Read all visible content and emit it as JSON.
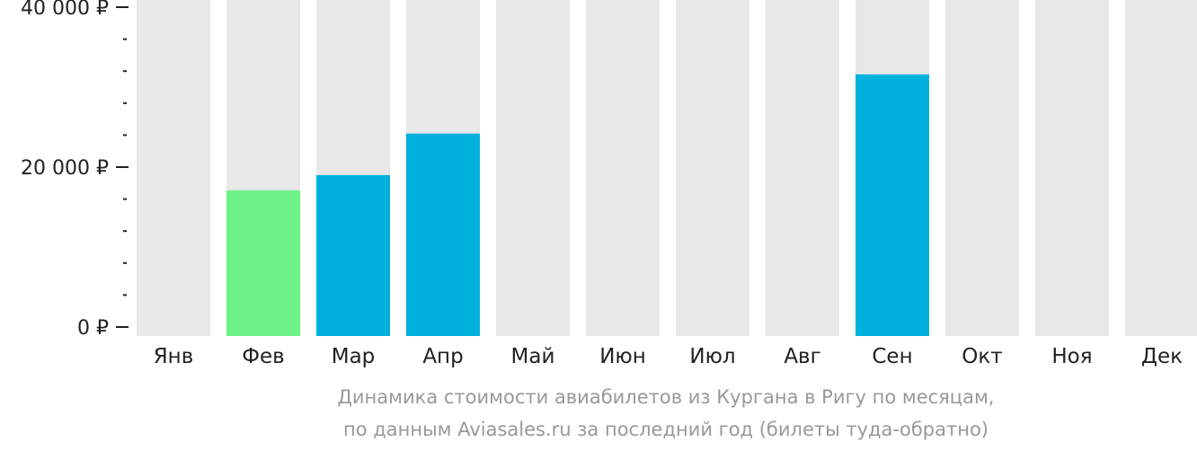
{
  "chart_data": {
    "type": "bar",
    "categories": [
      "Янв",
      "Фев",
      "Мар",
      "Апр",
      "Май",
      "Июн",
      "Июл",
      "Авг",
      "Сен",
      "Окт",
      "Ноя",
      "Дек"
    ],
    "values": [
      null,
      17100,
      19000,
      24200,
      null,
      null,
      null,
      null,
      31600,
      null,
      null,
      null
    ],
    "ylim": [
      0,
      40000
    ],
    "yticks": [
      {
        "value": 40000,
        "label": "40 000 ₽"
      },
      {
        "value": 20000,
        "label": "20 000 ₽"
      },
      {
        "value": 0,
        "label": "0 ₽"
      }
    ],
    "minor_tick_step": 4000,
    "highlight_index": 1,
    "grid": false,
    "legend": "none"
  },
  "colors": {
    "background_bar": "#e8e8e8",
    "bar": "#00b1dd",
    "bar_lowest": "#6cf287",
    "axis_tick": "#222222",
    "caption": "#999999"
  },
  "caption": {
    "line1": "Динамика стоимости авиабилетов из Кургана в Ригу по месяцам,",
    "line2": "по данным Aviasales.ru за последний год (билеты туда-обратно)"
  }
}
